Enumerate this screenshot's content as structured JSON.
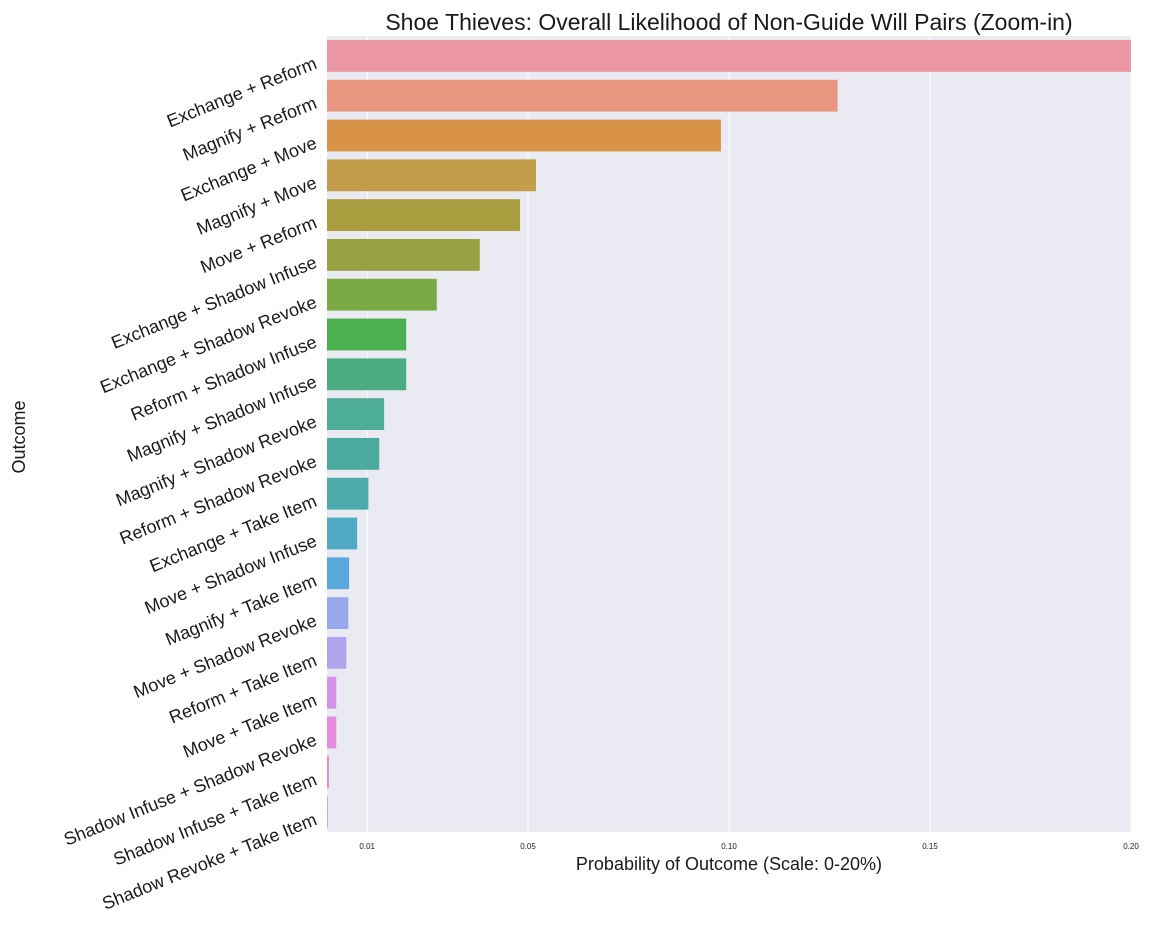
{
  "chart_data": {
    "type": "bar",
    "orientation": "horizontal",
    "title": "Shoe Thieves: Overall Likelihood of Non-Guide Will Pairs (Zoom-in)",
    "xlabel": "Probability of Outcome (Scale: 0-20%)",
    "ylabel": "Outcome",
    "xlim": [
      0,
      0.2
    ],
    "xticks": [
      0.01,
      0.05,
      0.1,
      0.15,
      0.2
    ],
    "xtick_labels": [
      "0.01",
      "0.05",
      "0.10",
      "0.15",
      "0.20"
    ],
    "grid": true,
    "background": "#eaeaf2",
    "categories": [
      "Exchange + Reform",
      "Magnify + Reform",
      "Exchange + Move",
      "Magnify + Move",
      "Move + Reform",
      "Exchange + Shadow Infuse",
      "Exchange + Shadow Revoke",
      "Reform + Shadow Infuse",
      "Magnify + Shadow Infuse",
      "Magnify + Shadow Revoke",
      "Reform + Shadow Revoke",
      "Exchange + Take Item",
      "Move + Shadow Infuse",
      "Magnify + Take Item",
      "Move + Shadow Revoke",
      "Reform + Take Item",
      "Move + Take Item",
      "Shadow Infuse + Shadow Revoke",
      "Shadow Infuse + Take Item",
      "Shadow Revoke + Take Item"
    ],
    "values": [
      0.205,
      0.127,
      0.098,
      0.052,
      0.048,
      0.038,
      0.0273,
      0.0197,
      0.0197,
      0.0142,
      0.013,
      0.0103,
      0.0075,
      0.0055,
      0.0053,
      0.0048,
      0.0023,
      0.0023,
      0.0005,
      0.0002
    ],
    "colors": [
      "#ea96a3",
      "#e8967f",
      "#d89348",
      "#c29d4a",
      "#aa9d40",
      "#97a143",
      "#7aaa44",
      "#4bb04f",
      "#4bac7f",
      "#4dad96",
      "#4cab9e",
      "#4dabab",
      "#50a9c4",
      "#58a8dc",
      "#96a8e9",
      "#b3a3ec",
      "#d592eb",
      "#e68be1",
      "#e68cc8",
      "#e890b9"
    ]
  }
}
